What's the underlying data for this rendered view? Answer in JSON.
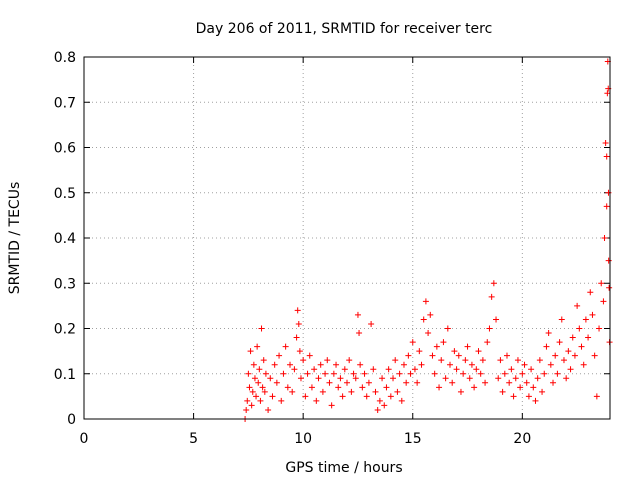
{
  "chart_data": {
    "type": "scatter",
    "title": "Day 206 of 2011, SRMTID for receiver terc",
    "xlabel": "GPS time / hours",
    "ylabel": "SRMTID / TECUs",
    "xlim": [
      0,
      24
    ],
    "ylim": [
      0,
      0.8
    ],
    "xticks": [
      0,
      5,
      10,
      15,
      20
    ],
    "yticks": [
      0,
      0.1,
      0.2,
      0.3,
      0.4,
      0.5,
      0.6,
      0.7,
      0.8
    ],
    "xtick_labels": [
      "0",
      "5",
      "10",
      "15",
      "20"
    ],
    "ytick_labels": [
      "0",
      "0.1",
      "0.2",
      "0.3",
      "0.4",
      "0.5",
      "0.6",
      "0.7",
      "0.8"
    ],
    "grid": true,
    "marker": "+",
    "color": "#ff0000",
    "series": [
      {
        "points": [
          [
            7.35,
            0.0
          ],
          [
            7.4,
            0.02
          ],
          [
            7.45,
            0.04
          ],
          [
            7.5,
            0.1
          ],
          [
            7.55,
            0.07
          ],
          [
            7.6,
            0.15
          ],
          [
            7.65,
            0.03
          ],
          [
            7.7,
            0.06
          ],
          [
            7.75,
            0.12
          ],
          [
            7.8,
            0.09
          ],
          [
            7.85,
            0.05
          ],
          [
            7.9,
            0.16
          ],
          [
            7.95,
            0.08
          ],
          [
            8.0,
            0.11
          ],
          [
            8.05,
            0.04
          ],
          [
            8.1,
            0.2
          ],
          [
            8.15,
            0.07
          ],
          [
            8.2,
            0.13
          ],
          [
            8.25,
            0.06
          ],
          [
            8.3,
            0.1
          ],
          [
            8.4,
            0.02
          ],
          [
            8.5,
            0.09
          ],
          [
            8.6,
            0.05
          ],
          [
            8.7,
            0.12
          ],
          [
            8.8,
            0.08
          ],
          [
            8.9,
            0.14
          ],
          [
            9.0,
            0.04
          ],
          [
            9.1,
            0.1
          ],
          [
            9.2,
            0.16
          ],
          [
            9.3,
            0.07
          ],
          [
            9.4,
            0.12
          ],
          [
            9.5,
            0.06
          ],
          [
            9.6,
            0.11
          ],
          [
            9.7,
            0.18
          ],
          [
            9.75,
            0.24
          ],
          [
            9.8,
            0.21
          ],
          [
            9.85,
            0.15
          ],
          [
            9.9,
            0.09
          ],
          [
            10.0,
            0.13
          ],
          [
            10.1,
            0.05
          ],
          [
            10.2,
            0.1
          ],
          [
            10.3,
            0.14
          ],
          [
            10.4,
            0.07
          ],
          [
            10.5,
            0.11
          ],
          [
            10.6,
            0.04
          ],
          [
            10.7,
            0.09
          ],
          [
            10.8,
            0.12
          ],
          [
            10.9,
            0.06
          ],
          [
            11.0,
            0.1
          ],
          [
            11.1,
            0.13
          ],
          [
            11.2,
            0.08
          ],
          [
            11.3,
            0.03
          ],
          [
            11.4,
            0.1
          ],
          [
            11.5,
            0.12
          ],
          [
            11.6,
            0.07
          ],
          [
            11.7,
            0.09
          ],
          [
            11.8,
            0.05
          ],
          [
            11.9,
            0.11
          ],
          [
            12.0,
            0.08
          ],
          [
            12.1,
            0.13
          ],
          [
            12.2,
            0.06
          ],
          [
            12.3,
            0.1
          ],
          [
            12.4,
            0.09
          ],
          [
            12.5,
            0.23
          ],
          [
            12.55,
            0.19
          ],
          [
            12.6,
            0.12
          ],
          [
            12.7,
            0.07
          ],
          [
            12.8,
            0.1
          ],
          [
            12.9,
            0.05
          ],
          [
            13.0,
            0.08
          ],
          [
            13.1,
            0.21
          ],
          [
            13.2,
            0.11
          ],
          [
            13.3,
            0.06
          ],
          [
            13.4,
            0.02
          ],
          [
            13.5,
            0.04
          ],
          [
            13.6,
            0.09
          ],
          [
            13.7,
            0.03
          ],
          [
            13.8,
            0.07
          ],
          [
            13.9,
            0.11
          ],
          [
            14.0,
            0.05
          ],
          [
            14.1,
            0.09
          ],
          [
            14.2,
            0.13
          ],
          [
            14.3,
            0.06
          ],
          [
            14.4,
            0.1
          ],
          [
            14.5,
            0.04
          ],
          [
            14.6,
            0.12
          ],
          [
            14.7,
            0.08
          ],
          [
            14.8,
            0.14
          ],
          [
            14.9,
            0.1
          ],
          [
            15.0,
            0.17
          ],
          [
            15.1,
            0.11
          ],
          [
            15.2,
            0.08
          ],
          [
            15.3,
            0.15
          ],
          [
            15.4,
            0.12
          ],
          [
            15.5,
            0.22
          ],
          [
            15.6,
            0.26
          ],
          [
            15.7,
            0.19
          ],
          [
            15.8,
            0.23
          ],
          [
            15.9,
            0.14
          ],
          [
            16.0,
            0.1
          ],
          [
            16.1,
            0.16
          ],
          [
            16.2,
            0.07
          ],
          [
            16.3,
            0.13
          ],
          [
            16.4,
            0.17
          ],
          [
            16.5,
            0.09
          ],
          [
            16.6,
            0.2
          ],
          [
            16.7,
            0.12
          ],
          [
            16.8,
            0.08
          ],
          [
            16.9,
            0.15
          ],
          [
            17.0,
            0.11
          ],
          [
            17.1,
            0.14
          ],
          [
            17.2,
            0.06
          ],
          [
            17.3,
            0.1
          ],
          [
            17.4,
            0.13
          ],
          [
            17.5,
            0.16
          ],
          [
            17.6,
            0.09
          ],
          [
            17.7,
            0.12
          ],
          [
            17.8,
            0.07
          ],
          [
            17.9,
            0.11
          ],
          [
            18.0,
            0.15
          ],
          [
            18.1,
            0.1
          ],
          [
            18.2,
            0.13
          ],
          [
            18.3,
            0.08
          ],
          [
            18.4,
            0.17
          ],
          [
            18.5,
            0.2
          ],
          [
            18.6,
            0.27
          ],
          [
            18.7,
            0.3
          ],
          [
            18.8,
            0.22
          ],
          [
            18.9,
            0.09
          ],
          [
            19.0,
            0.13
          ],
          [
            19.1,
            0.06
          ],
          [
            19.2,
            0.1
          ],
          [
            19.3,
            0.14
          ],
          [
            19.4,
            0.08
          ],
          [
            19.5,
            0.11
          ],
          [
            19.6,
            0.05
          ],
          [
            19.7,
            0.09
          ],
          [
            19.8,
            0.13
          ],
          [
            19.9,
            0.07
          ],
          [
            20.0,
            0.1
          ],
          [
            20.1,
            0.12
          ],
          [
            20.2,
            0.08
          ],
          [
            20.3,
            0.05
          ],
          [
            20.4,
            0.11
          ],
          [
            20.5,
            0.07
          ],
          [
            20.6,
            0.04
          ],
          [
            20.7,
            0.09
          ],
          [
            20.8,
            0.13
          ],
          [
            20.9,
            0.06
          ],
          [
            21.0,
            0.1
          ],
          [
            21.1,
            0.16
          ],
          [
            21.2,
            0.19
          ],
          [
            21.3,
            0.12
          ],
          [
            21.4,
            0.08
          ],
          [
            21.5,
            0.14
          ],
          [
            21.6,
            0.1
          ],
          [
            21.7,
            0.17
          ],
          [
            21.8,
            0.22
          ],
          [
            21.9,
            0.13
          ],
          [
            22.0,
            0.09
          ],
          [
            22.1,
            0.15
          ],
          [
            22.2,
            0.11
          ],
          [
            22.3,
            0.18
          ],
          [
            22.4,
            0.14
          ],
          [
            22.5,
            0.25
          ],
          [
            22.6,
            0.2
          ],
          [
            22.7,
            0.16
          ],
          [
            22.8,
            0.12
          ],
          [
            22.9,
            0.22
          ],
          [
            23.0,
            0.18
          ],
          [
            23.1,
            0.28
          ],
          [
            23.2,
            0.23
          ],
          [
            23.3,
            0.14
          ],
          [
            23.4,
            0.05
          ],
          [
            23.5,
            0.2
          ],
          [
            23.6,
            0.3
          ],
          [
            23.7,
            0.26
          ],
          [
            23.75,
            0.4
          ],
          [
            23.8,
            0.61
          ],
          [
            23.85,
            0.47
          ],
          [
            23.9,
            0.79
          ],
          [
            23.92,
            0.73
          ],
          [
            23.94,
            0.35
          ],
          [
            23.96,
            0.29
          ],
          [
            23.98,
            0.17
          ],
          [
            23.85,
            0.58
          ],
          [
            23.88,
            0.72
          ],
          [
            23.93,
            0.5
          ]
        ]
      }
    ]
  }
}
